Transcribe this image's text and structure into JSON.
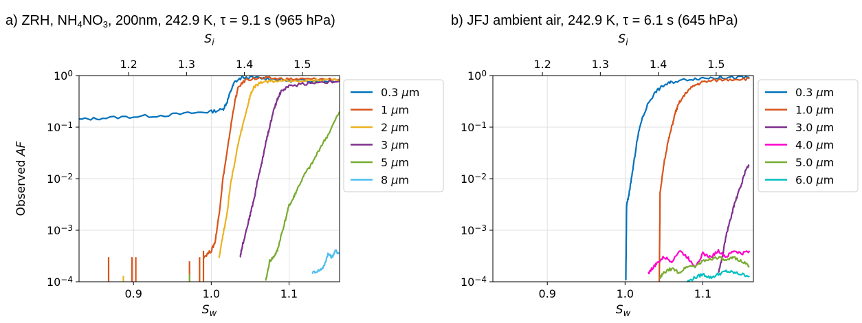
{
  "chart_data": [
    {
      "type": "line",
      "title": "a) ZRH, NH4NO3, 200nm, 242.9 K, τ = 9.1 s (965 hPa)",
      "title_parts": {
        "pre": "a) ZRH, NH",
        "sub1": "4",
        "mid": "NO",
        "sub2": "3",
        "post": ", 200nm, 242.9 K, τ = 9.1 s (965 hPa)"
      },
      "xlabel": {
        "base": "S",
        "sub": "w"
      },
      "ylabel": {
        "pre": "Observed ",
        "ital": "AF"
      },
      "top_xlabel": {
        "base": "S",
        "sub": "i"
      },
      "xlim": [
        0.83,
        1.165
      ],
      "ylim": [
        0.0001,
        1
      ],
      "yscale": "log",
      "xticks": [
        "0.9",
        "1.0",
        "1.1"
      ],
      "xtick_values": [
        0.9,
        1.0,
        1.1
      ],
      "top_xticks": [
        "1.2",
        "1.3",
        "1.4",
        "1.5"
      ],
      "top_xtick_values": [
        1.2,
        1.3,
        1.4,
        1.5
      ],
      "yticks": [
        {
          "base": "10",
          "exp": "−4",
          "v": -4
        },
        {
          "base": "10",
          "exp": "−3",
          "v": -3
        },
        {
          "base": "10",
          "exp": "−2",
          "v": -2
        },
        {
          "base": "10",
          "exp": "−1",
          "v": -1
        },
        {
          "base": "10",
          "exp": "0",
          "v": 0
        }
      ],
      "grid": true,
      "legend_position": "outside-right",
      "series": [
        {
          "name": "0.3 μm",
          "color": "#0072bd",
          "points": [
            [
              0.83,
              0.14
            ],
            [
              0.86,
              0.15
            ],
            [
              0.9,
              0.16
            ],
            [
              0.94,
              0.17
            ],
            [
              0.98,
              0.19
            ],
            [
              1.0,
              0.2
            ],
            [
              1.015,
              0.22
            ],
            [
              1.02,
              0.3
            ],
            [
              1.025,
              0.5
            ],
            [
              1.03,
              0.75
            ],
            [
              1.04,
              0.92
            ],
            [
              1.06,
              0.9
            ],
            [
              1.08,
              0.86
            ],
            [
              1.1,
              0.8
            ],
            [
              1.12,
              0.8
            ],
            [
              1.14,
              0.8
            ],
            [
              1.165,
              0.78
            ]
          ]
        },
        {
          "name": "1 μm",
          "color": "#d95319",
          "spikes": [
            [
              0.868,
              0.0003
            ],
            [
              0.898,
              0.0003
            ],
            [
              0.903,
              0.0003
            ],
            [
              0.972,
              0.00025
            ],
            [
              0.985,
              0.0003
            ],
            [
              0.99,
              0.0004
            ]
          ],
          "points": [
            [
              0.99,
              0.0003
            ],
            [
              1.0,
              0.0004
            ],
            [
              1.005,
              0.0006
            ],
            [
              1.01,
              0.002
            ],
            [
              1.015,
              0.01
            ],
            [
              1.02,
              0.03
            ],
            [
              1.025,
              0.1
            ],
            [
              1.03,
              0.3
            ],
            [
              1.035,
              0.6
            ],
            [
              1.045,
              0.85
            ],
            [
              1.06,
              0.88
            ],
            [
              1.08,
              0.88
            ],
            [
              1.1,
              0.85
            ],
            [
              1.12,
              0.85
            ],
            [
              1.14,
              0.85
            ],
            [
              1.165,
              0.85
            ]
          ]
        },
        {
          "name": "2 μm",
          "color": "#edb120",
          "spikes": [
            [
              0.887,
              0.00013
            ]
          ],
          "points": [
            [
              1.01,
              0.0003
            ],
            [
              1.015,
              0.0008
            ],
            [
              1.02,
              0.002
            ],
            [
              1.025,
              0.008
            ],
            [
              1.03,
              0.02
            ],
            [
              1.035,
              0.05
            ],
            [
              1.04,
              0.1
            ],
            [
              1.045,
              0.2
            ],
            [
              1.05,
              0.4
            ],
            [
              1.055,
              0.6
            ],
            [
              1.065,
              0.75
            ],
            [
              1.08,
              0.78
            ],
            [
              1.1,
              0.8
            ],
            [
              1.12,
              0.8
            ],
            [
              1.14,
              0.82
            ],
            [
              1.165,
              0.82
            ]
          ]
        },
        {
          "name": "3 μm",
          "color": "#7e2f8e",
          "points": [
            [
              1.037,
              0.0003
            ],
            [
              1.04,
              0.0005
            ],
            [
              1.045,
              0.001
            ],
            [
              1.05,
              0.002
            ],
            [
              1.055,
              0.004
            ],
            [
              1.06,
              0.01
            ],
            [
              1.065,
              0.02
            ],
            [
              1.07,
              0.05
            ],
            [
              1.075,
              0.1
            ],
            [
              1.08,
              0.2
            ],
            [
              1.085,
              0.35
            ],
            [
              1.09,
              0.5
            ],
            [
              1.1,
              0.62
            ],
            [
              1.12,
              0.7
            ],
            [
              1.14,
              0.75
            ],
            [
              1.165,
              0.78
            ]
          ]
        },
        {
          "name": "5 μm",
          "color": "#77ac30",
          "spikes": [
            [
              0.972,
              0.00014
            ]
          ],
          "points": [
            [
              1.07,
              0.0001
            ],
            [
              1.075,
              0.00025
            ],
            [
              1.08,
              0.0003
            ],
            [
              1.085,
              0.0004
            ],
            [
              1.09,
              0.0008
            ],
            [
              1.095,
              0.0015
            ],
            [
              1.1,
              0.003
            ],
            [
              1.105,
              0.004
            ],
            [
              1.11,
              0.006
            ],
            [
              1.12,
              0.012
            ],
            [
              1.13,
              0.02
            ],
            [
              1.14,
              0.04
            ],
            [
              1.15,
              0.07
            ],
            [
              1.165,
              0.2
            ]
          ]
        },
        {
          "name": "8 μm",
          "color": "#4dbeee",
          "points": [
            [
              1.13,
              0.00015
            ],
            [
              1.14,
              0.00017
            ],
            [
              1.145,
              0.0002
            ],
            [
              1.15,
              0.00035
            ],
            [
              1.155,
              0.0003
            ],
            [
              1.16,
              0.0004
            ],
            [
              1.165,
              0.00035
            ]
          ]
        }
      ]
    },
    {
      "type": "line",
      "title": "b) JFJ ambient air, 242.9 K, τ = 6.1 s (645 hPa)",
      "xlabel": {
        "base": "S",
        "sub": "w"
      },
      "top_xlabel": {
        "base": "S",
        "sub": "i"
      },
      "xlim": [
        0.83,
        1.165
      ],
      "ylim": [
        0.0001,
        1
      ],
      "yscale": "log",
      "xticks": [
        "0.9",
        "1.0",
        "1.1"
      ],
      "xtick_values": [
        0.9,
        1.0,
        1.1
      ],
      "top_xticks": [
        "1.2",
        "1.3",
        "1.4",
        "1.5"
      ],
      "top_xtick_values": [
        1.2,
        1.3,
        1.4,
        1.5
      ],
      "yticks": [
        {
          "base": "10",
          "exp": "−4",
          "v": -4
        },
        {
          "base": "10",
          "exp": "−3",
          "v": -3
        },
        {
          "base": "10",
          "exp": "−2",
          "v": -2
        },
        {
          "base": "10",
          "exp": "−1",
          "v": -1
        },
        {
          "base": "10",
          "exp": "0",
          "v": 0
        }
      ],
      "grid": true,
      "legend_position": "outside-right",
      "series": [
        {
          "name": "0.3 μm",
          "color": "#0072bd",
          "points": [
            [
              1.001,
              0.0001
            ],
            [
              1.002,
              0.003
            ],
            [
              1.005,
              0.005
            ],
            [
              1.01,
              0.015
            ],
            [
              1.015,
              0.05
            ],
            [
              1.02,
              0.12
            ],
            [
              1.03,
              0.3
            ],
            [
              1.04,
              0.5
            ],
            [
              1.05,
              0.65
            ],
            [
              1.06,
              0.75
            ],
            [
              1.08,
              0.85
            ],
            [
              1.1,
              0.9
            ],
            [
              1.12,
              0.92
            ],
            [
              1.14,
              0.92
            ],
            [
              1.16,
              0.92
            ]
          ]
        },
        {
          "name": "1.0 μm",
          "color": "#d95319",
          "points": [
            [
              1.044,
              0.0001
            ],
            [
              1.045,
              0.005
            ],
            [
              1.05,
              0.02
            ],
            [
              1.055,
              0.05
            ],
            [
              1.06,
              0.1
            ],
            [
              1.065,
              0.2
            ],
            [
              1.07,
              0.3
            ],
            [
              1.08,
              0.5
            ],
            [
              1.09,
              0.65
            ],
            [
              1.1,
              0.75
            ],
            [
              1.12,
              0.82
            ],
            [
              1.14,
              0.85
            ],
            [
              1.16,
              0.87
            ]
          ]
        },
        {
          "name": "3.0 μm",
          "color": "#7e2f8e",
          "points": [
            [
              1.12,
              0.00015
            ],
            [
              1.125,
              0.0003
            ],
            [
              1.13,
              0.0008
            ],
            [
              1.135,
              0.0015
            ],
            [
              1.14,
              0.003
            ],
            [
              1.145,
              0.005
            ],
            [
              1.15,
              0.008
            ],
            [
              1.155,
              0.015
            ],
            [
              1.16,
              0.018
            ]
          ]
        },
        {
          "name": "4.0 μm",
          "color": "#ff00cc",
          "points": [
            [
              1.03,
              0.00015
            ],
            [
              1.035,
              0.00018
            ],
            [
              1.04,
              0.00022
            ],
            [
              1.05,
              0.0003
            ],
            [
              1.06,
              0.00025
            ],
            [
              1.07,
              0.0004
            ],
            [
              1.08,
              0.0003
            ],
            [
              1.09,
              0.0002
            ],
            [
              1.1,
              0.00035
            ],
            [
              1.11,
              0.0003
            ],
            [
              1.12,
              0.0004
            ],
            [
              1.13,
              0.0003
            ],
            [
              1.14,
              0.0004
            ],
            [
              1.15,
              0.00035
            ],
            [
              1.16,
              0.0004
            ]
          ]
        },
        {
          "name": "5.0 μm",
          "color": "#77ac30",
          "points": [
            [
              1.045,
              0.00012
            ],
            [
              1.05,
              0.00015
            ],
            [
              1.06,
              0.00018
            ],
            [
              1.07,
              0.00015
            ],
            [
              1.08,
              0.0002
            ],
            [
              1.09,
              0.0002
            ],
            [
              1.1,
              0.00025
            ],
            [
              1.11,
              0.00028
            ],
            [
              1.12,
              0.0003
            ],
            [
              1.13,
              0.00025
            ],
            [
              1.14,
              0.0003
            ],
            [
              1.15,
              0.00025
            ],
            [
              1.16,
              0.0002
            ]
          ]
        },
        {
          "name": "6.0 μm",
          "color": "#00bfbf",
          "points": [
            [
              1.08,
              0.0001
            ],
            [
              1.09,
              0.00012
            ],
            [
              1.1,
              0.00014
            ],
            [
              1.11,
              0.00012
            ],
            [
              1.12,
              0.00014
            ],
            [
              1.13,
              0.00016
            ],
            [
              1.14,
              0.00015
            ],
            [
              1.15,
              0.00014
            ],
            [
              1.16,
              0.00013
            ]
          ]
        }
      ]
    }
  ]
}
